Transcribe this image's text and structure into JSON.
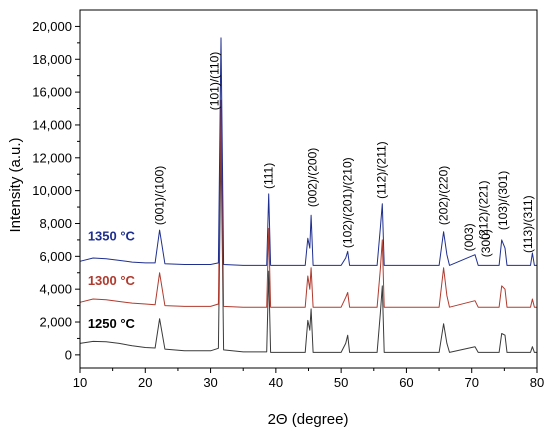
{
  "chart_data": {
    "type": "line",
    "xlabel": "2Θ (degree)",
    "ylabel": "Intensity (a.u.)",
    "xlim": [
      10,
      80
    ],
    "ylim": [
      -800,
      21000
    ],
    "x_ticks": [
      10,
      20,
      30,
      40,
      50,
      60,
      70,
      80
    ],
    "y_ticks": [
      0,
      2000,
      4000,
      6000,
      8000,
      10000,
      12000,
      14000,
      16000,
      18000,
      20000
    ],
    "x_tick_labels": [
      "10",
      "20",
      "30",
      "40",
      "50",
      "60",
      "70",
      "80"
    ],
    "y_tick_labels": [
      "0",
      "2,000",
      "4,000",
      "6,000",
      "8,000",
      "10,000",
      "12,000",
      "14,000",
      "16,000",
      "18,000",
      "20,000"
    ],
    "grid": false,
    "series": [
      {
        "name": "1250 °C",
        "color": "#3a3a3a",
        "points": [
          [
            10,
            700
          ],
          [
            12,
            820
          ],
          [
            14,
            800
          ],
          [
            16,
            700
          ],
          [
            18,
            550
          ],
          [
            20,
            450
          ],
          [
            21.5,
            420
          ],
          [
            22.2,
            2200
          ],
          [
            23,
            350
          ],
          [
            26,
            250
          ],
          [
            30,
            250
          ],
          [
            31.2,
            400
          ],
          [
            31.6,
            13000
          ],
          [
            32,
            300
          ],
          [
            35,
            180
          ],
          [
            38.6,
            180
          ],
          [
            38.9,
            5100
          ],
          [
            39.2,
            150
          ],
          [
            44.5,
            150
          ],
          [
            44.9,
            2100
          ],
          [
            45.2,
            1500
          ],
          [
            45.4,
            2800
          ],
          [
            45.7,
            150
          ],
          [
            50,
            150
          ],
          [
            50.7,
            700
          ],
          [
            51,
            1200
          ],
          [
            51.3,
            150
          ],
          [
            55.5,
            150
          ],
          [
            56.0,
            2500
          ],
          [
            56.3,
            4200
          ],
          [
            56.6,
            150
          ],
          [
            65,
            150
          ],
          [
            65.7,
            1900
          ],
          [
            66.2,
            700
          ],
          [
            66.6,
            150
          ],
          [
            70.5,
            500
          ],
          [
            71,
            150
          ],
          [
            74.2,
            150
          ],
          [
            74.6,
            1300
          ],
          [
            75.1,
            1200
          ],
          [
            75.4,
            150
          ],
          [
            79,
            150
          ],
          [
            79.3,
            500
          ],
          [
            79.6,
            150
          ],
          [
            80,
            150
          ]
        ]
      },
      {
        "name": "1300 °C",
        "color": "#b03a2e",
        "points": [
          [
            10,
            3200
          ],
          [
            12,
            3400
          ],
          [
            14,
            3350
          ],
          [
            16,
            3250
          ],
          [
            18,
            3150
          ],
          [
            20,
            3100
          ],
          [
            21.5,
            3050
          ],
          [
            22.2,
            5000
          ],
          [
            23,
            3000
          ],
          [
            26,
            2950
          ],
          [
            30,
            2950
          ],
          [
            31.2,
            3100
          ],
          [
            31.6,
            15500
          ],
          [
            32,
            2950
          ],
          [
            35,
            2900
          ],
          [
            38.6,
            2900
          ],
          [
            38.9,
            7700
          ],
          [
            39.2,
            2900
          ],
          [
            44.5,
            2900
          ],
          [
            44.9,
            4800
          ],
          [
            45.2,
            4000
          ],
          [
            45.4,
            5300
          ],
          [
            45.7,
            2900
          ],
          [
            50,
            2900
          ],
          [
            50.7,
            3500
          ],
          [
            51,
            3800
          ],
          [
            51.3,
            2900
          ],
          [
            55.5,
            2900
          ],
          [
            56.0,
            5200
          ],
          [
            56.3,
            7000
          ],
          [
            56.6,
            2900
          ],
          [
            65,
            2900
          ],
          [
            65.7,
            5300
          ],
          [
            66.2,
            3600
          ],
          [
            66.6,
            2900
          ],
          [
            70.5,
            3300
          ],
          [
            71,
            2900
          ],
          [
            74.2,
            2900
          ],
          [
            74.6,
            4200
          ],
          [
            75.1,
            4000
          ],
          [
            75.4,
            2900
          ],
          [
            79,
            2900
          ],
          [
            79.3,
            3400
          ],
          [
            79.6,
            2900
          ],
          [
            80,
            2900
          ]
        ]
      },
      {
        "name": "1350 °C",
        "color": "#1f2f8f",
        "points": [
          [
            10,
            5700
          ],
          [
            12,
            5900
          ],
          [
            14,
            5850
          ],
          [
            16,
            5750
          ],
          [
            18,
            5650
          ],
          [
            20,
            5600
          ],
          [
            21.5,
            5600
          ],
          [
            22.2,
            7600
          ],
          [
            23,
            5550
          ],
          [
            26,
            5500
          ],
          [
            30,
            5500
          ],
          [
            31.2,
            5600
          ],
          [
            31.6,
            19300
          ],
          [
            32,
            5500
          ],
          [
            35,
            5450
          ],
          [
            38.6,
            5450
          ],
          [
            38.9,
            9800
          ],
          [
            39.2,
            5450
          ],
          [
            44.5,
            5450
          ],
          [
            44.9,
            7100
          ],
          [
            45.2,
            6500
          ],
          [
            45.4,
            8500
          ],
          [
            45.7,
            5450
          ],
          [
            50,
            5450
          ],
          [
            50.7,
            5900
          ],
          [
            51,
            6300
          ],
          [
            51.3,
            5450
          ],
          [
            55.5,
            5450
          ],
          [
            56.0,
            7700
          ],
          [
            56.3,
            9200
          ],
          [
            56.6,
            5450
          ],
          [
            65,
            5450
          ],
          [
            65.7,
            7500
          ],
          [
            66.2,
            6100
          ],
          [
            66.6,
            5450
          ],
          [
            70.5,
            6100
          ],
          [
            71,
            5450
          ],
          [
            74.2,
            5450
          ],
          [
            74.6,
            7000
          ],
          [
            75.1,
            6500
          ],
          [
            75.4,
            5450
          ],
          [
            79,
            5450
          ],
          [
            79.3,
            6200
          ],
          [
            79.6,
            5450
          ],
          [
            80,
            5450
          ]
        ]
      }
    ],
    "series_labels": [
      {
        "text": "1350 °C",
        "color": "#1f2f8f",
        "x": 11.2,
        "y": 6950
      },
      {
        "text": "1300 °C",
        "color": "#b03a2e",
        "x": 11.2,
        "y": 4250
      },
      {
        "text": "1250 °C",
        "color": "#000000",
        "x": 11.2,
        "y": 1650
      }
    ],
    "annotations": [
      {
        "text": "(001)/(100)",
        "x": 22.2,
        "y": 7900
      },
      {
        "text": "(101)/(110)",
        "x": 30.6,
        "y": 14900
      },
      {
        "text": "(111)",
        "x": 38.9,
        "y": 10100
      },
      {
        "text": "(002)/(200)",
        "x": 45.6,
        "y": 9000
      },
      {
        "text": "(102)/(201)/(210)",
        "x": 51.0,
        "y": 6500
      },
      {
        "text": "(112)/(211)",
        "x": 56.2,
        "y": 9500
      },
      {
        "text": "(202)/(220)",
        "x": 65.7,
        "y": 7900
      },
      {
        "text": "(003)",
        "x": 69.6,
        "y": 6300
      },
      {
        "text": "(212)/(221)",
        "x": 71.8,
        "y": 7000
      },
      {
        "text": "(300)",
        "x": 72.2,
        "y": 5950
      },
      {
        "text": "(103)/(301)",
        "x": 74.8,
        "y": 7600
      },
      {
        "text": "(113)/(311)",
        "x": 78.6,
        "y": 6200
      }
    ]
  }
}
